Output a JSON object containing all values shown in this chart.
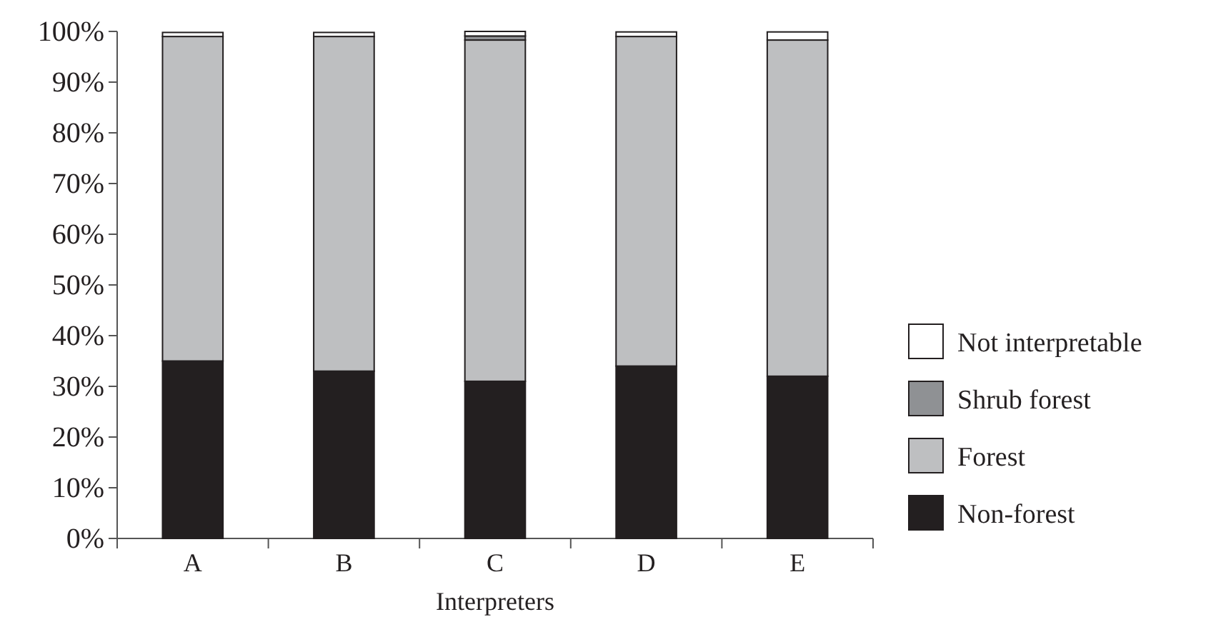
{
  "chart_data": {
    "type": "bar",
    "stacked": true,
    "xlabel": "Interpreters",
    "categories": [
      "A",
      "B",
      "C",
      "D",
      "E"
    ],
    "series": [
      {
        "name": "Non-forest",
        "color": "#231f20",
        "values": [
          35,
          33,
          31,
          34,
          32
        ]
      },
      {
        "name": "Forest",
        "color": "#bebfc1",
        "values": [
          64,
          66,
          67.3,
          65,
          66.3
        ]
      },
      {
        "name": "Shrub forest",
        "color": "#8f9194",
        "values": [
          null,
          null,
          0.8,
          null,
          null
        ]
      },
      {
        "name": "Not interpretable",
        "color": "#ffffff",
        "values": [
          0.8,
          0.8,
          0.9,
          0.9,
          1.6
        ]
      }
    ],
    "ylim": [
      0,
      100
    ],
    "yticks": [
      {
        "value": 0,
        "label": "0%"
      },
      {
        "value": 10,
        "label": "10%"
      },
      {
        "value": 20,
        "label": "20%"
      },
      {
        "value": 30,
        "label": "30%"
      },
      {
        "value": 40,
        "label": "40%"
      },
      {
        "value": 50,
        "label": "50%"
      },
      {
        "value": 60,
        "label": "60%"
      },
      {
        "value": 70,
        "label": "70%"
      },
      {
        "value": 80,
        "label": "80%"
      },
      {
        "value": 90,
        "label": "90%"
      },
      {
        "value": 100,
        "label": "100%"
      }
    ],
    "grid": false,
    "legend": "right"
  }
}
